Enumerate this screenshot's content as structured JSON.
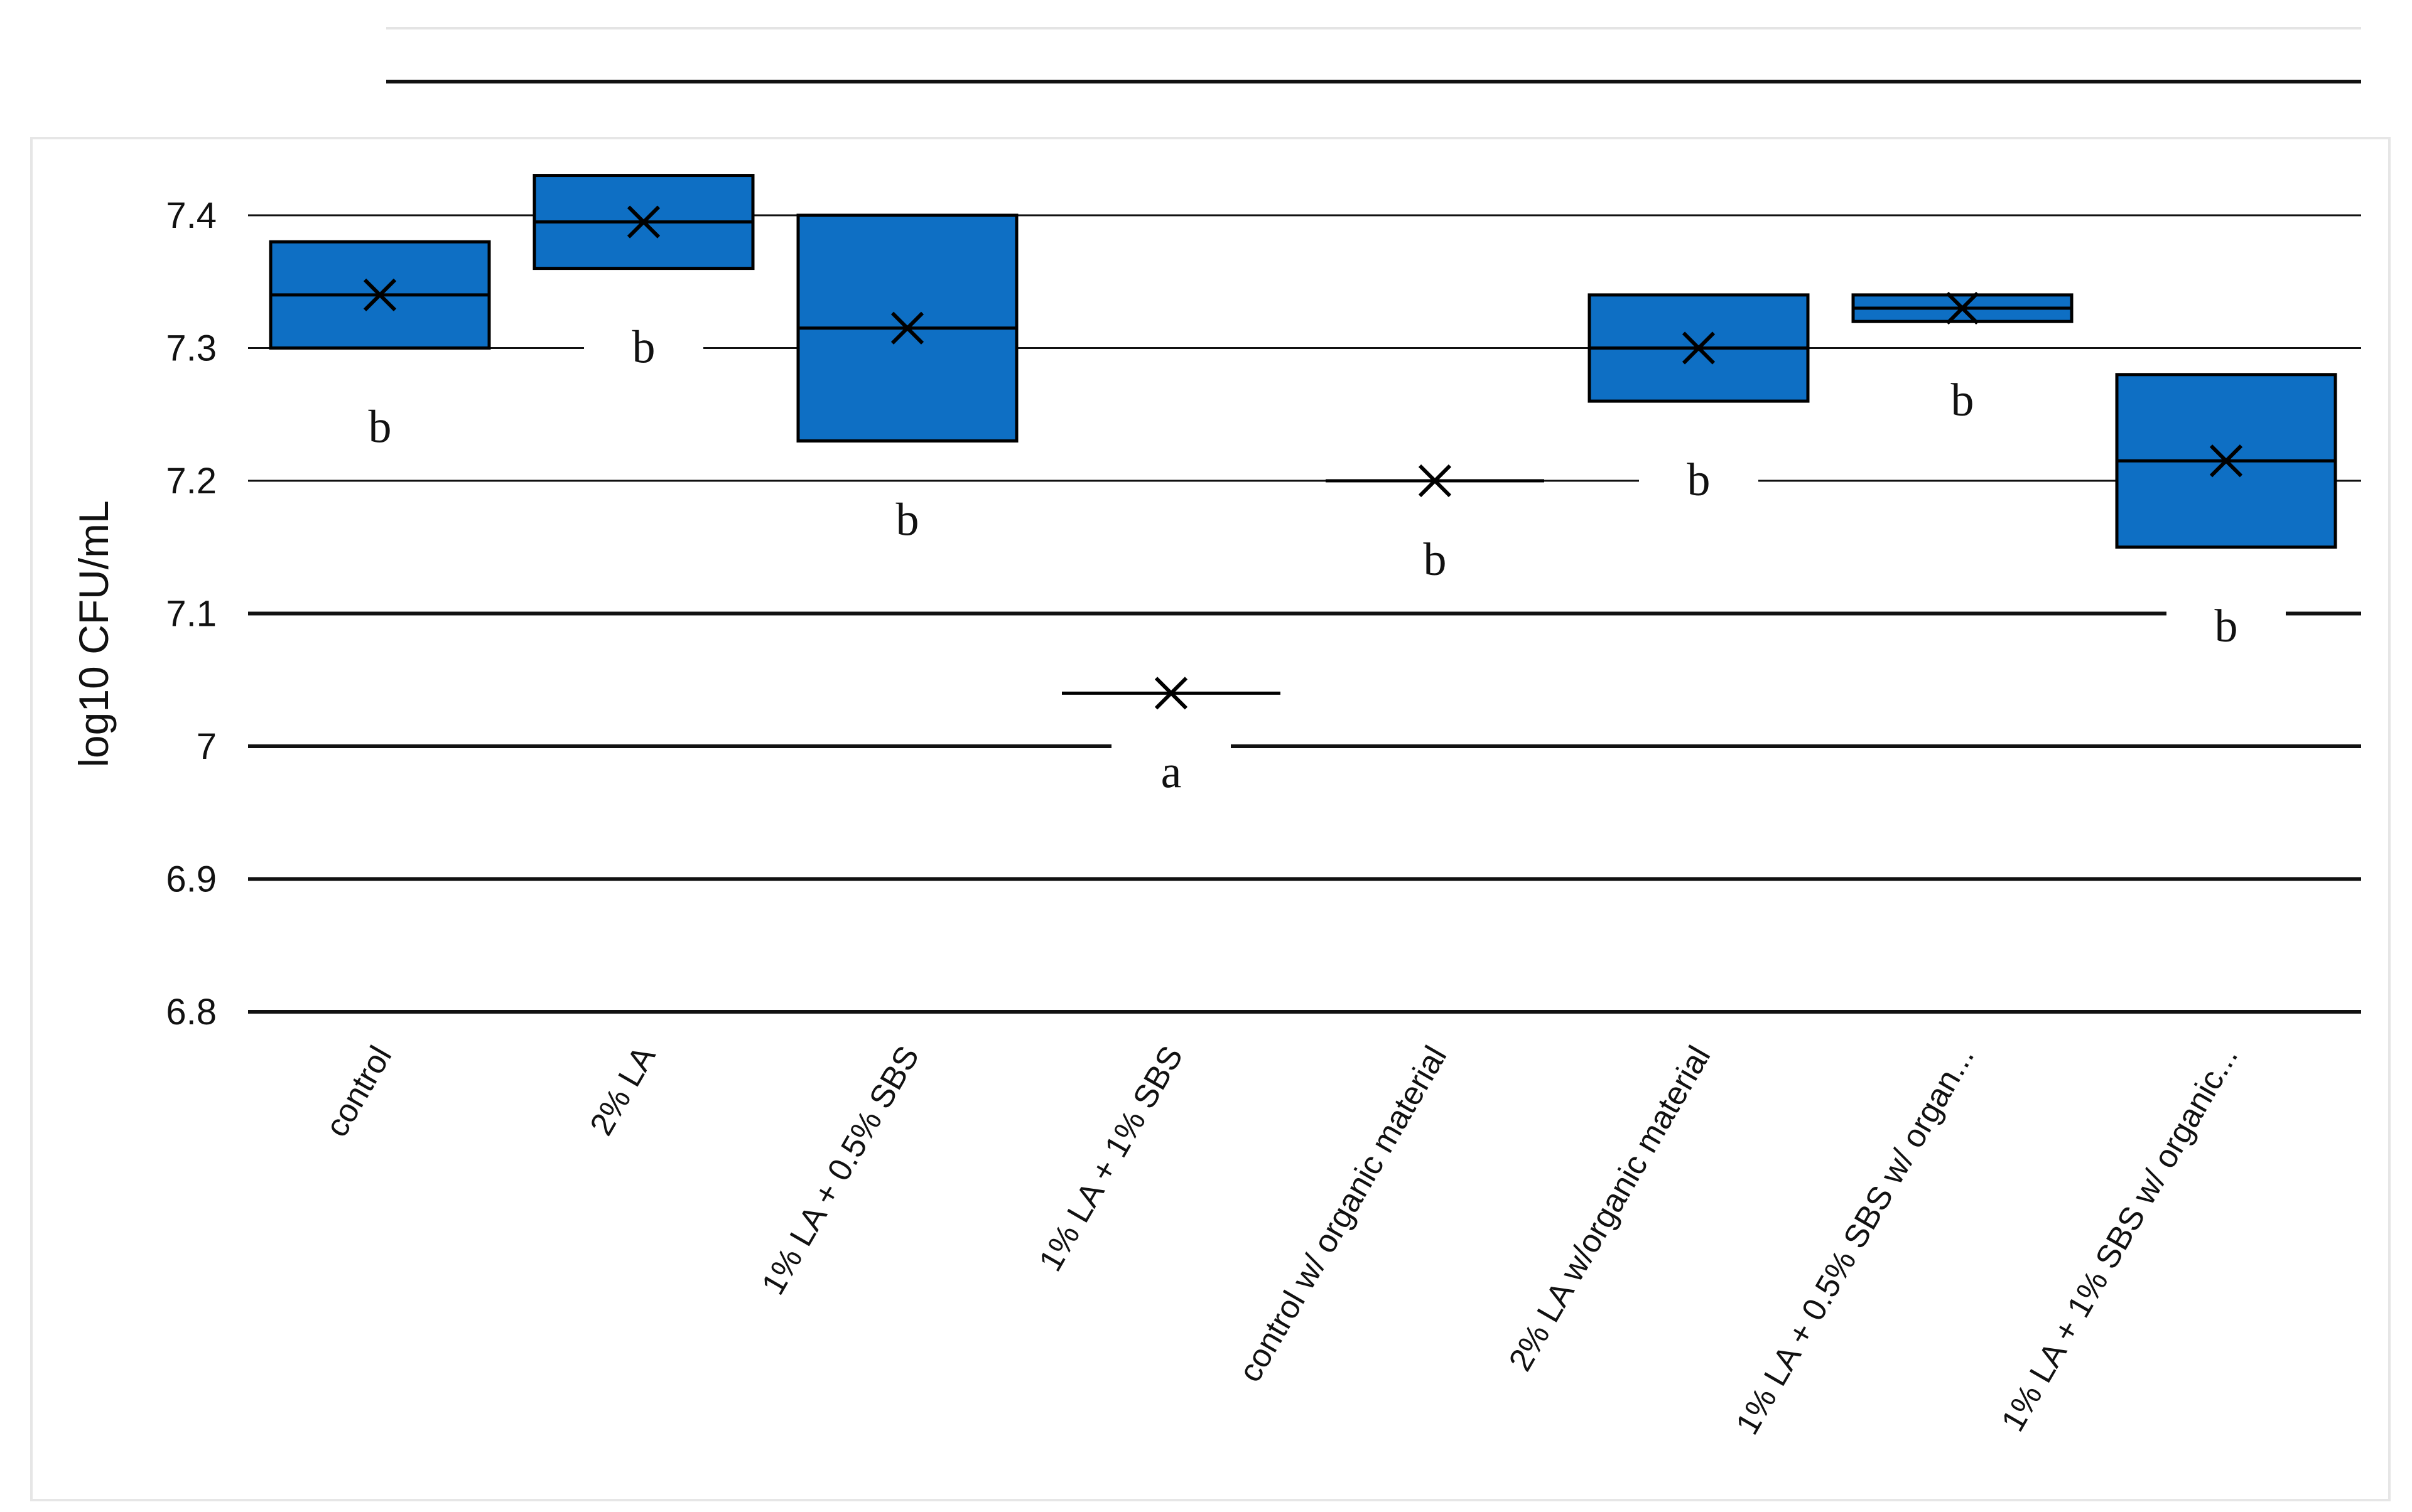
{
  "chart_data": {
    "type": "box",
    "title": "",
    "xlabel": "",
    "ylabel": "log10 CFU/mL",
    "ylim": [
      6.8,
      7.4
    ],
    "yticks": [
      6.8,
      6.9,
      7,
      7.1,
      7.2,
      7.3,
      7.4
    ],
    "ytick_labels": [
      "6.8",
      "6.9",
      "7",
      "7.1",
      "7.2",
      "7.3",
      "7.4"
    ],
    "grid": true,
    "color": "#0E6FC4",
    "categories": [
      "control",
      "2% LA",
      "1% LA + 0.5% SBS",
      "1% LA + 1% SBS",
      "control w/ organic material",
      "2% LA w/organic material",
      "1% LA + 0.5% SBS w/ organ...",
      "1% LA + 1% SBS w/ organic..."
    ],
    "series": [
      {
        "name": "control",
        "q1": 7.3,
        "median": 7.34,
        "q3": 7.38,
        "mean": 7.34,
        "letter": "b"
      },
      {
        "name": "2% LA",
        "q1": 7.36,
        "median": 7.395,
        "q3": 7.43,
        "mean": 7.395,
        "letter": "b"
      },
      {
        "name": "1% LA + 0.5% SBS",
        "q1": 7.23,
        "median": 7.315,
        "q3": 7.4,
        "mean": 7.315,
        "letter": "b"
      },
      {
        "name": "1% LA + 1% SBS",
        "q1": 7.04,
        "median": 7.04,
        "q3": 7.04,
        "mean": 7.04,
        "letter": "a"
      },
      {
        "name": "control w/ organic material",
        "q1": 7.2,
        "median": 7.2,
        "q3": 7.2,
        "mean": 7.2,
        "letter": "b"
      },
      {
        "name": "2% LA w/organic material",
        "q1": 7.26,
        "median": 7.3,
        "q3": 7.34,
        "mean": 7.3,
        "letter": "b"
      },
      {
        "name": "1% LA + 0.5% SBS w/ organ...",
        "q1": 7.32,
        "median": 7.33,
        "q3": 7.34,
        "mean": 7.33,
        "letter": "b"
      },
      {
        "name": "1% LA + 1% SBS w/ organic...",
        "q1": 7.15,
        "median": 7.215,
        "q3": 7.28,
        "mean": 7.215,
        "letter": "b"
      }
    ]
  }
}
